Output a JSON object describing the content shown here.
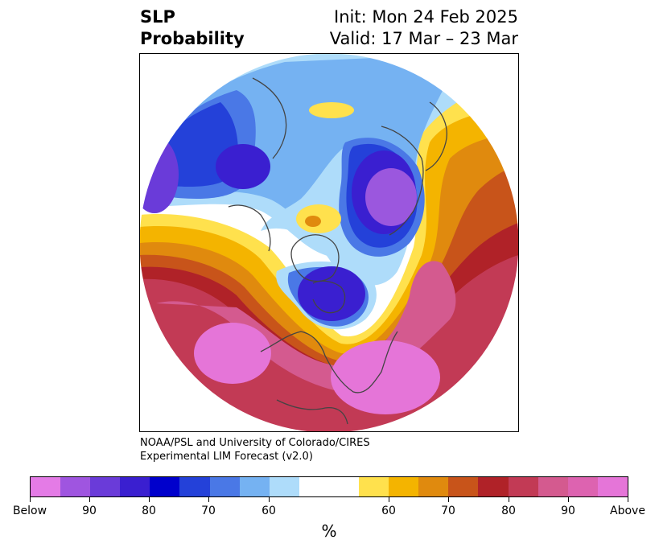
{
  "title": {
    "left_line1": "SLP",
    "left_line2": "Probability",
    "right_line1": "Init: Mon 24 Feb 2025",
    "right_line2": "Valid: 17 Mar – 23 Mar"
  },
  "credit": {
    "line1": "NOAA/PSL and University of Colorado/CIRES",
    "line2": "Experimental LIM Forecast (v2.0)"
  },
  "colorbar": {
    "unit": "%",
    "colors": [
      "#e47be6",
      "#9f55e0",
      "#6a3bd9",
      "#3a1fd0",
      "#0000cc",
      "#2441d9",
      "#4a78e6",
      "#75b2f2",
      "#aedcfa",
      "#ffffff",
      "#ffffff",
      "#ffe14d",
      "#f4b400",
      "#e08a0e",
      "#c8541a",
      "#b02228",
      "#c23a55",
      "#d45a8f",
      "#dd63b0",
      "#e575d8"
    ],
    "tick_labels": [
      "Below",
      "90",
      "80",
      "70",
      "60",
      "60",
      "70",
      "80",
      "90",
      "Above"
    ]
  },
  "map": {
    "palette": {
      "below_extreme": "#9b57de",
      "below_90": "#6a3bd9",
      "below_80": "#3a1fd0",
      "below_70": "#2441d9",
      "below_60": "#4a78e6",
      "below_50": "#75b2f2",
      "below_light": "#aedcfa",
      "neutral": "#ffffff",
      "above_light": "#ffe14d",
      "above_60": "#f4b400",
      "above_70": "#e08a0e",
      "above_80": "#c8541a",
      "above_85": "#b02228",
      "above_90": "#c23a55",
      "above_95": "#d45a8f",
      "above_extreme": "#e575d8",
      "coastline": "#444444"
    }
  }
}
